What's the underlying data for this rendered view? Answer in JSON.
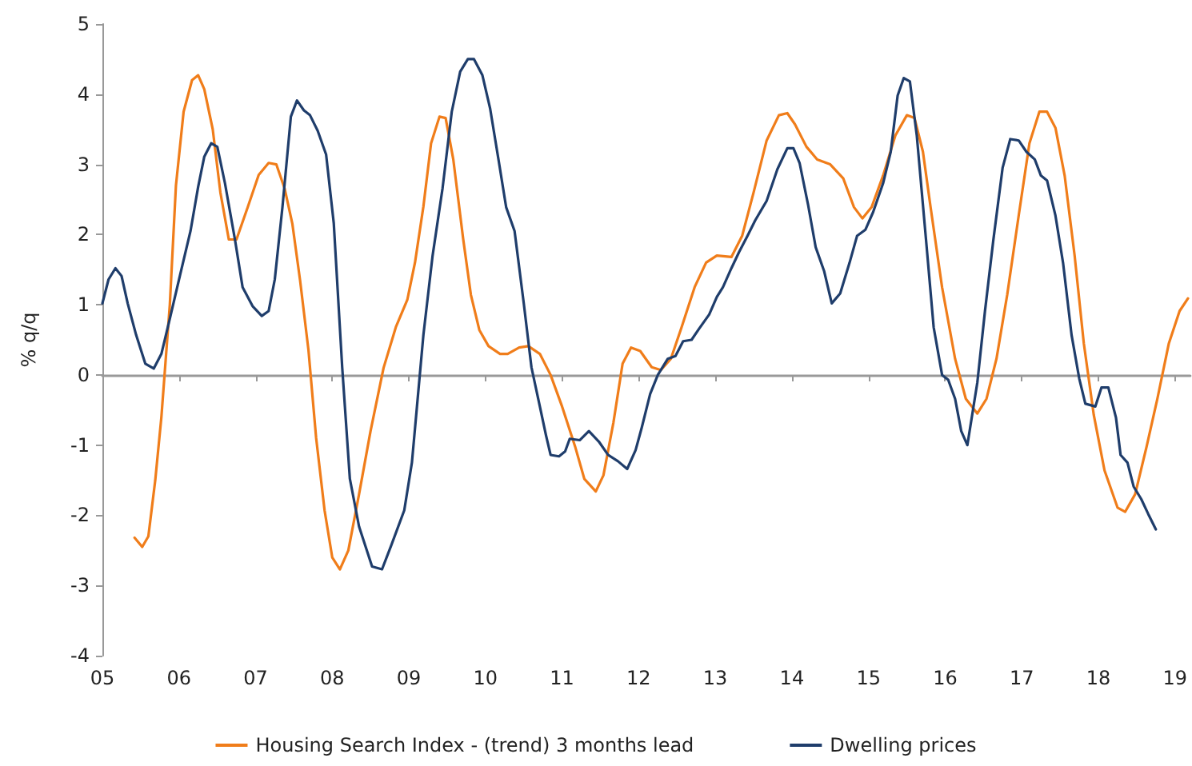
{
  "chart_data": {
    "type": "line",
    "ylabel": "% q/q",
    "xlim": [
      2005,
      2019.2
    ],
    "ylim": [
      -4,
      5
    ],
    "xticks": [
      {
        "value": 2005,
        "label": "05"
      },
      {
        "value": 2006,
        "label": "06"
      },
      {
        "value": 2007,
        "label": "07"
      },
      {
        "value": 2008,
        "label": "08"
      },
      {
        "value": 2009,
        "label": "09"
      },
      {
        "value": 2010,
        "label": "10"
      },
      {
        "value": 2011,
        "label": "11"
      },
      {
        "value": 2012,
        "label": "12"
      },
      {
        "value": 2013,
        "label": "13"
      },
      {
        "value": 2014,
        "label": "14"
      },
      {
        "value": 2015,
        "label": "15"
      },
      {
        "value": 2016,
        "label": "16"
      },
      {
        "value": 2017,
        "label": "17"
      },
      {
        "value": 2018,
        "label": "18"
      },
      {
        "value": 2019,
        "label": "19"
      }
    ],
    "yticks": [
      -4,
      -3,
      -2,
      -1,
      0,
      1,
      2,
      3,
      4,
      5
    ],
    "legend": "bottom",
    "marker": "none",
    "line_style": "solid",
    "series": [
      {
        "name": "Housing Search Index - (trend) 3 months lead",
        "color": "#f07d1a",
        "x": [
          2005.42,
          2005.52,
          2005.6,
          2005.69,
          2005.77,
          2005.88,
          2005.96,
          2006.06,
          2006.17,
          2006.25,
          2006.33,
          2006.44,
          2006.54,
          2006.65,
          2006.75,
          2006.9,
          2007.04,
          2007.17,
          2007.27,
          2007.38,
          2007.48,
          2007.58,
          2007.69,
          2007.79,
          2007.9,
          2008.0,
          2008.1,
          2008.21,
          2008.35,
          2008.5,
          2008.67,
          2008.83,
          2008.98,
          2009.08,
          2009.19,
          2009.29,
          2009.4,
          2009.48,
          2009.58,
          2009.71,
          2009.81,
          2009.92,
          2010.04,
          2010.19,
          2010.29,
          2010.44,
          2010.56,
          2010.71,
          2010.85,
          2011.0,
          2011.17,
          2011.29,
          2011.44,
          2011.54,
          2011.67,
          2011.79,
          2011.9,
          2012.02,
          2012.17,
          2012.29,
          2012.42,
          2012.56,
          2012.73,
          2012.88,
          2013.02,
          2013.21,
          2013.35,
          2013.5,
          2013.67,
          2013.83,
          2013.94,
          2014.04,
          2014.19,
          2014.33,
          2014.5,
          2014.67,
          2014.81,
          2014.92,
          2015.04,
          2015.19,
          2015.35,
          2015.5,
          2015.6,
          2015.71,
          2015.81,
          2015.96,
          2016.13,
          2016.27,
          2016.42,
          2016.54,
          2016.67,
          2016.81,
          2016.96,
          2017.1,
          2017.23,
          2017.33,
          2017.44,
          2017.56,
          2017.69,
          2017.81,
          2017.94,
          2018.08,
          2018.25,
          2018.35,
          2018.48,
          2018.63,
          2018.77,
          2018.92,
          2019.06,
          2019.17
        ],
        "values": [
          -2.32,
          -2.45,
          -2.3,
          -1.5,
          -0.6,
          1.0,
          2.7,
          3.75,
          4.2,
          4.27,
          4.07,
          3.5,
          2.6,
          1.93,
          1.93,
          2.4,
          2.85,
          3.02,
          3.0,
          2.65,
          2.15,
          1.35,
          0.35,
          -0.9,
          -1.93,
          -2.6,
          -2.77,
          -2.5,
          -1.7,
          -0.8,
          0.1,
          0.68,
          1.07,
          1.6,
          2.4,
          3.3,
          3.68,
          3.66,
          3.07,
          1.93,
          1.14,
          0.64,
          0.41,
          0.3,
          0.3,
          0.39,
          0.41,
          0.3,
          0,
          -0.45,
          -1.02,
          -1.48,
          -1.66,
          -1.43,
          -0.68,
          0.16,
          0.39,
          0.34,
          0.11,
          0.07,
          0.23,
          0.68,
          1.25,
          1.6,
          1.7,
          1.68,
          1.98,
          2.6,
          3.34,
          3.7,
          3.73,
          3.57,
          3.25,
          3.07,
          3.0,
          2.8,
          2.39,
          2.23,
          2.39,
          2.84,
          3.41,
          3.7,
          3.66,
          3.18,
          2.39,
          1.25,
          0.23,
          -0.34,
          -0.55,
          -0.34,
          0.23,
          1.14,
          2.27,
          3.3,
          3.75,
          3.75,
          3.52,
          2.84,
          1.7,
          0.45,
          -0.57,
          -1.36,
          -1.89,
          -1.95,
          -1.7,
          -1.02,
          -0.34,
          0.45,
          0.91,
          1.09
        ]
      },
      {
        "name": "Dwelling prices",
        "color": "#1f3d6b",
        "x": [
          2005,
          2005.08,
          2005.17,
          2005.25,
          2005.33,
          2005.44,
          2005.56,
          2005.67,
          2005.77,
          2005.88,
          2006.0,
          2006.15,
          2006.25,
          2006.33,
          2006.42,
          2006.5,
          2006.6,
          2006.73,
          2006.83,
          2006.96,
          2007.08,
          2007.17,
          2007.25,
          2007.35,
          2007.46,
          2007.54,
          2007.63,
          2007.71,
          2007.81,
          2007.92,
          2008.02,
          2008.13,
          2008.23,
          2008.35,
          2008.52,
          2008.65,
          2008.77,
          2008.94,
          2009.04,
          2009.19,
          2009.31,
          2009.44,
          2009.56,
          2009.67,
          2009.77,
          2009.85,
          2009.96,
          2010.06,
          2010.17,
          2010.27,
          2010.38,
          2010.5,
          2010.6,
          2010.71,
          2010.79,
          2010.85,
          2010.96,
          2011.04,
          2011.1,
          2011.23,
          2011.35,
          2011.48,
          2011.6,
          2011.73,
          2011.85,
          2011.96,
          2012.04,
          2012.15,
          2012.25,
          2012.38,
          2012.48,
          2012.58,
          2012.69,
          2012.79,
          2012.92,
          2013.02,
          2013.1,
          2013.21,
          2013.31,
          2013.42,
          2013.52,
          2013.67,
          2013.81,
          2013.94,
          2014.02,
          2014.1,
          2014.21,
          2014.31,
          2014.42,
          2014.52,
          2014.63,
          2014.75,
          2014.85,
          2014.96,
          2015.06,
          2015.19,
          2015.29,
          2015.38,
          2015.46,
          2015.54,
          2015.63,
          2015.75,
          2015.85,
          2015.96,
          2016.04,
          2016.13,
          2016.21,
          2016.29,
          2016.42,
          2016.52,
          2016.63,
          2016.75,
          2016.85,
          2016.96,
          2017.06,
          2017.17,
          2017.25,
          2017.33,
          2017.44,
          2017.54,
          2017.65,
          2017.75,
          2017.83,
          2017.96,
          2018.04,
          2018.13,
          2018.23,
          2018.29,
          2018.38,
          2018.46,
          2018.56,
          2018.65,
          2018.75
        ],
        "values": [
          1.02,
          1.36,
          1.52,
          1.41,
          1.02,
          0.57,
          0.16,
          0.09,
          0.3,
          0.8,
          1.36,
          2.05,
          2.68,
          3.11,
          3.3,
          3.25,
          2.73,
          1.93,
          1.25,
          0.98,
          0.84,
          0.91,
          1.36,
          2.39,
          3.68,
          3.91,
          3.77,
          3.7,
          3.48,
          3.14,
          2.16,
          0.11,
          -1.48,
          -2.16,
          -2.73,
          -2.77,
          -2.43,
          -1.93,
          -1.25,
          0.57,
          1.7,
          2.66,
          3.75,
          4.32,
          4.5,
          4.5,
          4.27,
          3.8,
          3.07,
          2.39,
          2.05,
          1.02,
          0.11,
          -0.45,
          -0.86,
          -1.14,
          -1.16,
          -1.09,
          -0.91,
          -0.93,
          -0.8,
          -0.95,
          -1.14,
          -1.23,
          -1.34,
          -1.07,
          -0.75,
          -0.27,
          0,
          0.23,
          0.27,
          0.48,
          0.5,
          0.66,
          0.86,
          1.11,
          1.25,
          1.52,
          1.75,
          1.98,
          2.2,
          2.48,
          2.93,
          3.23,
          3.23,
          3.02,
          2.43,
          1.82,
          1.48,
          1.02,
          1.16,
          1.59,
          1.98,
          2.07,
          2.32,
          2.73,
          3.18,
          3.98,
          4.23,
          4.18,
          3.41,
          1.93,
          0.68,
          0,
          -0.07,
          -0.34,
          -0.8,
          -1.0,
          -0.11,
          0.91,
          1.93,
          2.95,
          3.36,
          3.34,
          3.18,
          3.07,
          2.84,
          2.77,
          2.27,
          1.59,
          0.57,
          -0.05,
          -0.41,
          -0.45,
          -0.18,
          -0.18,
          -0.61,
          -1.14,
          -1.25,
          -1.59,
          -1.77,
          -1.98,
          -2.2
        ]
      }
    ]
  }
}
